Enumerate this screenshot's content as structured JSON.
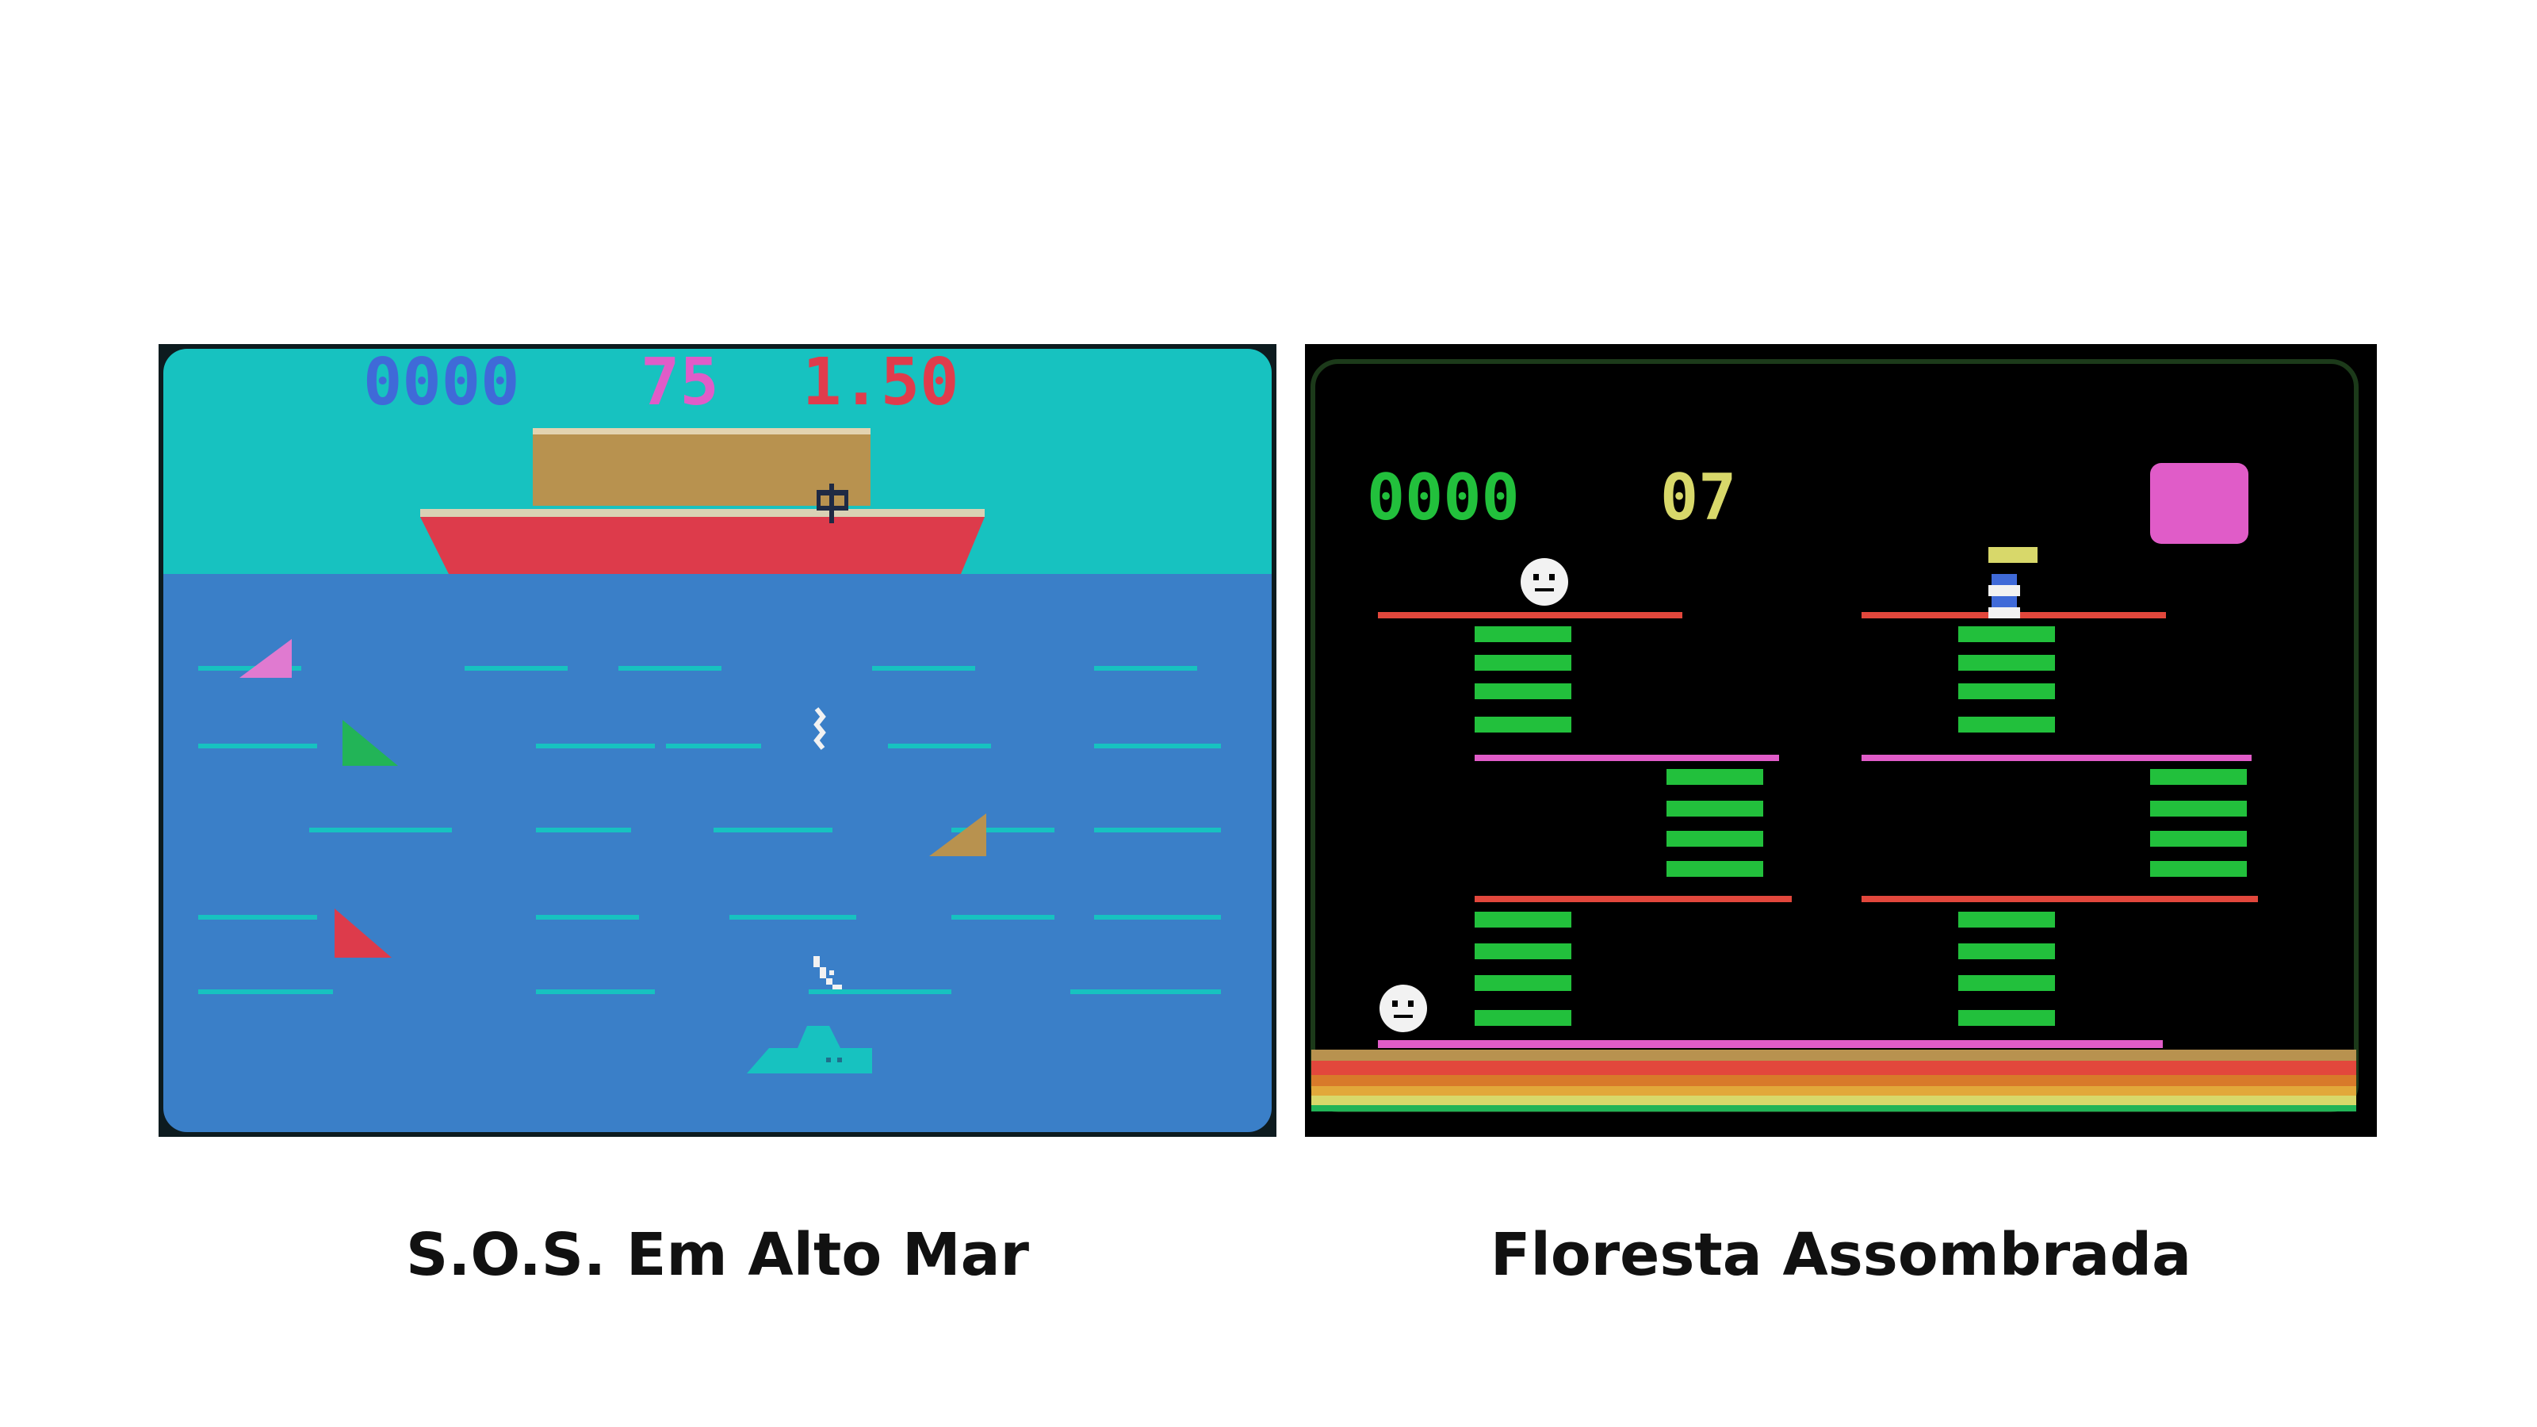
{
  "games": {
    "sos": {
      "title": "S.O.S. Em Alto Mar",
      "hud": {
        "score": "0000",
        "count": "75",
        "timer": "1.50"
      },
      "colors": {
        "sky": "#17c2c0",
        "sea": "#3a7fc8",
        "wave": "#17c2c0",
        "score": "#3f6ad8",
        "count": "#e05cc8",
        "timer": "#e03c4c",
        "hull": "#dd3b4b",
        "cargo": "#b8924f",
        "deck": "#d9d2b5"
      },
      "sprites": [
        "ship",
        "helicopter-claw",
        "shark-fin-pink",
        "shark-fin-green",
        "shark-fin-brown",
        "shark-fin-red",
        "swimmer",
        "diver",
        "speedboat"
      ]
    },
    "floresta": {
      "title": "Floresta Assombrada",
      "hud": {
        "score": "0000",
        "count": "07"
      },
      "colors": {
        "background": "#000000",
        "score": "#22c03c",
        "count": "#d8d86a",
        "item": "#e05cc8",
        "platform_red": "#e2473c",
        "platform_pink": "#e05cc8",
        "stairs": "#22c03c",
        "ghost": "#ffffff"
      },
      "sprites": [
        "ghost-upper",
        "ghost-lower",
        "player",
        "gold-bar",
        "pink-chest",
        "stairs",
        "platforms",
        "ground-stripes"
      ]
    }
  }
}
